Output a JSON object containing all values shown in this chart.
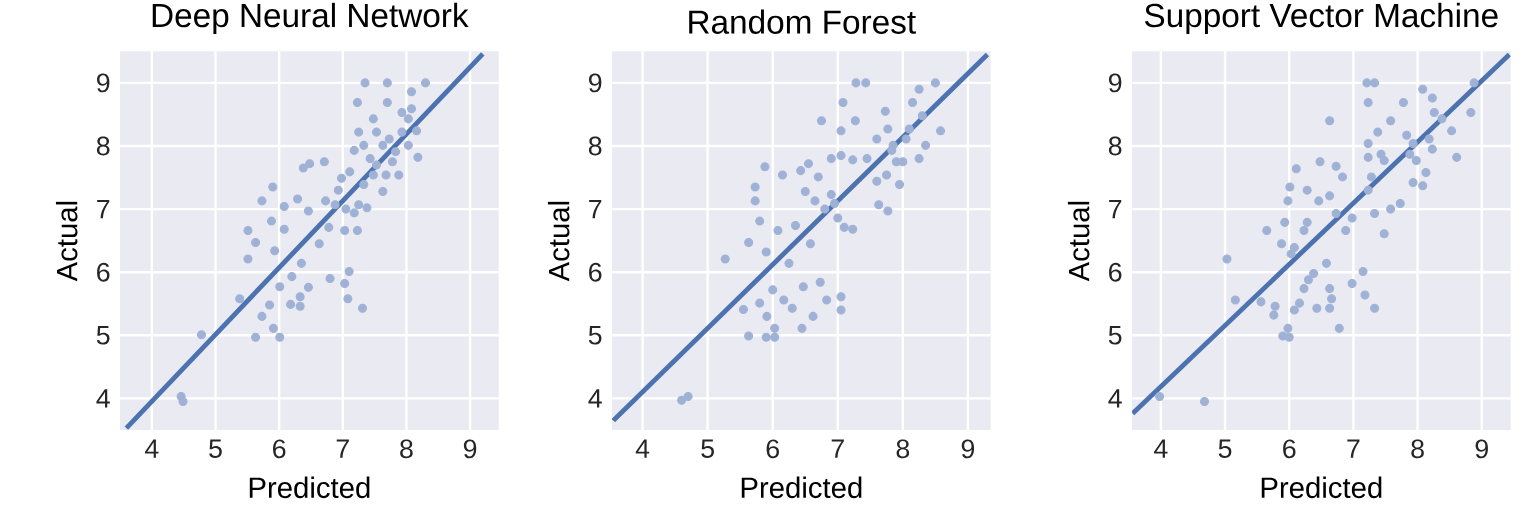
{
  "chart_data": [
    {
      "type": "scatter",
      "title": "Deep Neural Network",
      "xlabel": "Predicted",
      "ylabel": "Actual",
      "xlim": [
        3.5,
        9.45
      ],
      "ylim": [
        3.5,
        9.5
      ],
      "xticks": [
        4,
        5,
        6,
        7,
        8,
        9
      ],
      "yticks": [
        4,
        5,
        6,
        7,
        8,
        9
      ],
      "grid": true,
      "series": [
        {
          "marker": "circle",
          "color": "#9fb2d6",
          "x": [
            4.46,
            4.49,
            4.78,
            5.38,
            5.63,
            5.73,
            5.91,
            6.01,
            6.01,
            5.85,
            6.18,
            6.33,
            6.33,
            6.46,
            6.2,
            6.35,
            5.51,
            5.51,
            5.63,
            5.93,
            6.08,
            5.88,
            5.73,
            5.9,
            6.08,
            6.29,
            6.38,
            6.48,
            6.71,
            6.46,
            6.63,
            6.78,
            6.8,
            7.03,
            7.1,
            7.08,
            7.31,
            6.73,
            6.88,
            7.05,
            7.18,
            7.25,
            7.03,
            7.23,
            6.93,
            7.11,
            6.98,
            7.18,
            7.25,
            7.23,
            7.35,
            7.7,
            8.3,
            7.7,
            8.08,
            7.93,
            8.03,
            7.48,
            7.53,
            7.33,
            7.43,
            7.63,
            7.73,
            7.83,
            7.93,
            8.03,
            8.18,
            8.16,
            8.08,
            7.48,
            7.68,
            7.88,
            7.63,
            7.33,
            7.38,
            7.53,
            7.78
          ],
          "values": [
            4.03,
            3.95,
            5.01,
            5.58,
            4.97,
            5.3,
            5.11,
            4.97,
            5.77,
            5.48,
            5.49,
            5.46,
            5.61,
            5.76,
            5.93,
            6.14,
            6.21,
            6.66,
            6.47,
            6.34,
            6.68,
            6.81,
            7.13,
            7.35,
            7.04,
            7.16,
            7.65,
            7.72,
            7.75,
            6.97,
            6.45,
            6.71,
            5.9,
            5.82,
            6.01,
            5.58,
            5.43,
            7.13,
            7.07,
            7.0,
            6.94,
            7.07,
            6.66,
            6.66,
            7.3,
            7.59,
            7.49,
            7.93,
            8.22,
            8.69,
            9.0,
            9.0,
            9.0,
            8.69,
            8.86,
            8.53,
            8.43,
            8.43,
            8.22,
            8.01,
            7.8,
            8.01,
            8.11,
            7.91,
            8.22,
            8.01,
            7.82,
            8.24,
            8.59,
            7.54,
            7.54,
            7.54,
            7.28,
            7.39,
            7.02,
            7.7,
            7.75
          ]
        },
        {
          "type": "line",
          "color": "#4c72b0",
          "x": [
            3.6,
            9.2
          ],
          "values": [
            3.53,
            9.46
          ]
        }
      ]
    },
    {
      "type": "scatter",
      "title": "Random Forest",
      "xlabel": "Predicted",
      "ylabel": "Actual",
      "xlim": [
        3.53,
        9.35
      ],
      "ylim": [
        3.5,
        9.5
      ],
      "xticks": [
        4,
        5,
        6,
        7,
        8,
        9
      ],
      "yticks": [
        4,
        5,
        6,
        7,
        8,
        9
      ],
      "grid": true,
      "series": [
        {
          "marker": "circle",
          "color": "#9fb2d6",
          "x": [
            4.6,
            4.7,
            5.27,
            5.55,
            5.63,
            5.9,
            6.03,
            6.03,
            5.91,
            5.8,
            6.0,
            6.17,
            6.3,
            6.45,
            6.62,
            6.47,
            6.25,
            6.73,
            6.83,
            7.05,
            7.05,
            5.63,
            5.9,
            5.8,
            6.08,
            6.35,
            6.58,
            5.73,
            5.73,
            5.88,
            6.15,
            6.43,
            6.55,
            6.7,
            6.5,
            6.65,
            6.8,
            6.95,
            6.9,
            7.0,
            7.1,
            7.23,
            6.9,
            7.05,
            7.05,
            6.75,
            7.08,
            7.28,
            7.43,
            7.27,
            7.23,
            7.45,
            7.6,
            7.73,
            7.77,
            7.85,
            7.83,
            7.75,
            7.6,
            7.63,
            7.77,
            7.95,
            8.0,
            8.1,
            8.15,
            8.25,
            8.3,
            8.5,
            8.58,
            8.35,
            8.25,
            8.05,
            7.9
          ],
          "values": [
            3.97,
            4.03,
            6.21,
            5.41,
            4.99,
            4.97,
            4.97,
            5.11,
            5.3,
            5.51,
            5.72,
            5.56,
            5.43,
            5.11,
            5.3,
            5.77,
            6.14,
            5.84,
            5.56,
            5.61,
            5.4,
            6.47,
            6.32,
            6.81,
            6.66,
            6.74,
            6.45,
            7.13,
            7.35,
            7.67,
            7.54,
            7.61,
            7.72,
            7.51,
            7.28,
            7.13,
            7.0,
            7.09,
            7.23,
            6.86,
            6.71,
            6.68,
            7.8,
            7.85,
            8.24,
            8.4,
            8.69,
            9.0,
            9.0,
            8.4,
            7.78,
            7.8,
            8.11,
            8.55,
            8.27,
            8.01,
            7.93,
            7.54,
            7.44,
            7.07,
            6.97,
            7.39,
            7.75,
            8.27,
            8.69,
            8.9,
            8.48,
            9.0,
            8.24,
            8.01,
            7.8,
            8.11,
            7.75
          ]
        },
        {
          "type": "line",
          "color": "#4c72b0",
          "x": [
            3.55,
            9.3
          ],
          "values": [
            3.65,
            9.45
          ]
        }
      ]
    },
    {
      "type": "scatter",
      "title": "Support Vector Machine",
      "xlabel": "Predicted",
      "ylabel": "Actual",
      "xlim": [
        3.55,
        9.45
      ],
      "ylim": [
        3.5,
        9.5
      ],
      "xticks": [
        4,
        5,
        6,
        7,
        8,
        9
      ],
      "yticks": [
        4,
        5,
        6,
        7,
        8,
        9
      ],
      "grid": true,
      "series": [
        {
          "marker": "circle",
          "color": "#9fb2d6",
          "x": [
            3.98,
            4.68,
            5.03,
            5.16,
            5.56,
            5.76,
            5.78,
            5.9,
            6.0,
            5.98,
            6.08,
            6.16,
            6.23,
            6.3,
            6.38,
            6.43,
            6.63,
            6.66,
            6.63,
            6.78,
            6.58,
            6.98,
            7.15,
            7.18,
            7.33,
            5.65,
            5.88,
            5.93,
            6.03,
            6.08,
            6.23,
            6.28,
            5.98,
            6.01,
            6.11,
            6.28,
            6.46,
            6.63,
            6.48,
            6.73,
            6.83,
            6.73,
            6.88,
            6.98,
            6.63,
            7.21,
            7.33,
            7.23,
            7.23,
            7.23,
            7.38,
            7.43,
            7.48,
            7.28,
            7.23,
            7.33,
            7.48,
            7.58,
            7.73,
            7.58,
            7.78,
            7.83,
            7.88,
            7.98,
            7.93,
            8.08,
            8.23,
            8.26,
            8.18,
            8.23,
            8.13,
            8.08,
            7.93,
            8.53,
            8.61,
            8.83,
            8.88,
            8.38
          ],
          "values": [
            4.03,
            3.95,
            6.21,
            5.56,
            5.53,
            5.32,
            5.46,
            4.99,
            4.97,
            5.11,
            5.4,
            5.51,
            5.74,
            5.88,
            5.98,
            5.43,
            5.74,
            5.58,
            5.43,
            5.11,
            6.14,
            5.82,
            6.01,
            5.64,
            5.43,
            6.66,
            6.45,
            6.79,
            6.29,
            6.39,
            6.66,
            6.79,
            7.13,
            7.35,
            7.64,
            7.3,
            7.13,
            7.21,
            7.75,
            7.68,
            7.51,
            6.93,
            6.66,
            6.86,
            8.4,
            9.0,
            9.0,
            8.69,
            8.04,
            7.82,
            8.22,
            7.87,
            7.77,
            7.51,
            7.3,
            6.93,
            6.61,
            7.0,
            7.09,
            8.4,
            8.69,
            8.17,
            7.87,
            7.77,
            8.04,
            8.9,
            8.76,
            8.53,
            8.11,
            7.95,
            7.58,
            7.37,
            7.42,
            8.24,
            7.82,
            8.53,
            9.0,
            8.43
          ]
        },
        {
          "type": "line",
          "color": "#4c72b0",
          "x": [
            3.56,
            9.43
          ],
          "values": [
            3.76,
            9.45
          ]
        }
      ]
    }
  ]
}
